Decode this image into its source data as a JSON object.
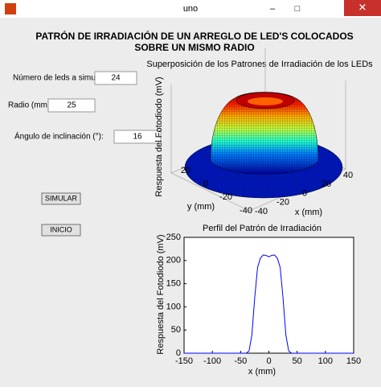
{
  "window": {
    "title": "uno"
  },
  "header": {
    "lines": [
      "PATRÓN DE IRRADIACIÓN DE UN ARREGLO DE LED'S COLOCADOS",
      "SOBRE UN MISMO RADIO"
    ]
  },
  "form": {
    "fields": [
      {
        "label": "Número de leds a simular:",
        "value": "24"
      },
      {
        "label": "Radio (mm):",
        "value": "25"
      },
      {
        "label": "Ángulo de inclinación (°):",
        "value": "16"
      }
    ],
    "buttons": [
      "SIMULAR",
      "INICIO"
    ]
  },
  "surface_plot": {
    "title": "Superposición de los Patrones de Irradiación de los LEDs",
    "zlabel": "Respuesta del Fotodiodo (mV)",
    "xlabel": "x (mm)",
    "ylabel": "y (mm)",
    "xlim": [
      -40,
      40
    ],
    "xticks": [
      -40,
      -20,
      0,
      20,
      40
    ],
    "ylim": [
      -40,
      20
    ],
    "yticks": [
      -40,
      -20,
      0,
      20
    ]
  },
  "chart_data": {
    "type": "line",
    "title": "Perfil del Patrón de Irradiación",
    "x_label": "x (mm)",
    "y_label": "Respuesta del Fotodiodo (mV)",
    "x": [
      -150,
      -40,
      -35,
      -30,
      -25,
      -20,
      -15,
      -10,
      -5,
      0,
      5,
      10,
      15,
      20,
      25,
      30,
      35,
      40,
      150
    ],
    "values": [
      0,
      0,
      5,
      40,
      120,
      185,
      205,
      212,
      211,
      208,
      211,
      212,
      205,
      185,
      120,
      40,
      5,
      0,
      0
    ],
    "color": "#0000ff",
    "xlim": [
      -150,
      150
    ],
    "xticks": [
      -150,
      -100,
      -50,
      0,
      50,
      100,
      150
    ],
    "ylim": [
      0,
      250
    ],
    "yticks": [
      0,
      50,
      100,
      150,
      200,
      250
    ],
    "grid": false
  }
}
